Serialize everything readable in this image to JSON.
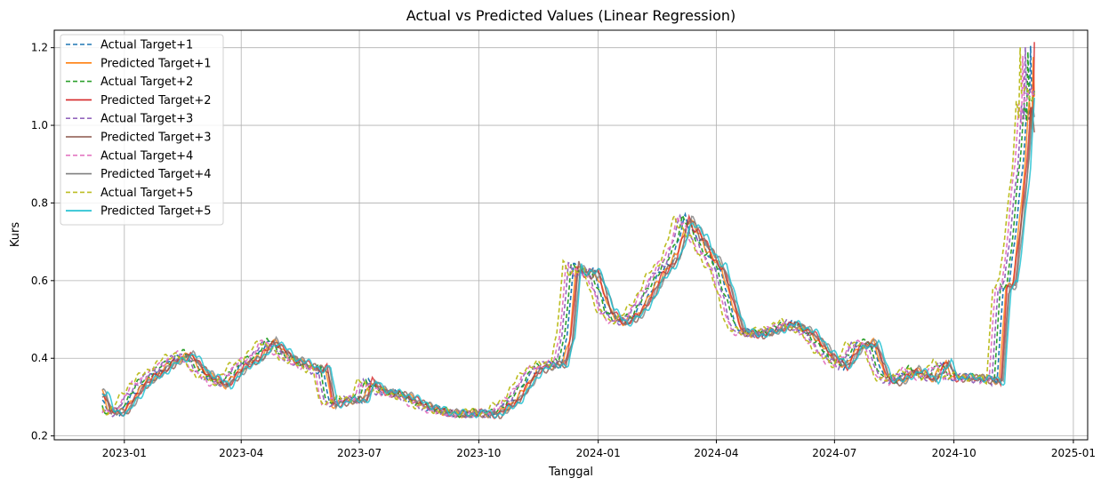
{
  "chart_data": {
    "type": "line",
    "title": "Actual vs Predicted Values (Linear Regression)",
    "xlabel": "Tanggal",
    "ylabel": "Kurs",
    "xlim": [
      "2022-11-08",
      "2025-01-12"
    ],
    "ylim": [
      0.19,
      1.245
    ],
    "grid": true,
    "legend_position": "top-left",
    "x_ticks": [
      "2023-01-01",
      "2023-04-01",
      "2023-07-01",
      "2023-10-01",
      "2024-01-01",
      "2024-04-01",
      "2024-07-01",
      "2024-10-01",
      "2025-01-01"
    ],
    "x_tick_labels": [
      "2023-01",
      "2023-04",
      "2023-07",
      "2023-10",
      "2024-01",
      "2024-04",
      "2024-07",
      "2024-10",
      "2025-01"
    ],
    "y_ticks": [
      0.2,
      0.4,
      0.6,
      0.8,
      1.0,
      1.2
    ],
    "y_tick_labels": [
      "0.2",
      "0.4",
      "0.6",
      "0.8",
      "1.0",
      "1.2"
    ],
    "base_curve": {
      "dates": [
        "2022-12-15",
        "2022-12-20",
        "2022-12-31",
        "2023-01-15",
        "2023-01-31",
        "2023-02-10",
        "2023-02-20",
        "2023-03-05",
        "2023-03-20",
        "2023-04-05",
        "2023-04-15",
        "2023-04-25",
        "2023-05-10",
        "2023-05-31",
        "2023-06-05",
        "2023-06-10",
        "2023-06-20",
        "2023-07-05",
        "2023-07-10",
        "2023-07-20",
        "2023-08-05",
        "2023-08-20",
        "2023-09-05",
        "2023-09-20",
        "2023-10-01",
        "2023-10-15",
        "2023-10-31",
        "2023-11-15",
        "2023-11-30",
        "2023-12-05",
        "2023-12-10",
        "2023-12-15",
        "2023-12-20",
        "2023-12-31",
        "2024-01-10",
        "2024-01-20",
        "2024-01-31",
        "2024-02-10",
        "2024-02-20",
        "2024-03-01",
        "2024-03-10",
        "2024-03-20",
        "2024-03-31",
        "2024-04-05",
        "2024-04-10",
        "2024-04-20",
        "2024-05-05",
        "2024-05-15",
        "2024-05-31",
        "2024-06-15",
        "2024-06-30",
        "2024-07-10",
        "2024-07-20",
        "2024-07-31",
        "2024-08-10",
        "2024-08-20",
        "2024-09-01",
        "2024-09-15",
        "2024-09-25",
        "2024-10-01",
        "2024-10-15",
        "2024-10-31",
        "2024-11-05",
        "2024-11-10",
        "2024-11-15",
        "2024-11-20",
        "2024-11-25",
        "2024-11-28",
        "2024-11-30",
        "2024-12-01",
        "2024-12-02"
      ],
      "values": [
        0.31,
        0.265,
        0.26,
        0.33,
        0.37,
        0.395,
        0.41,
        0.36,
        0.33,
        0.385,
        0.4,
        0.445,
        0.4,
        0.37,
        0.375,
        0.28,
        0.29,
        0.295,
        0.34,
        0.315,
        0.305,
        0.28,
        0.262,
        0.255,
        0.26,
        0.255,
        0.295,
        0.37,
        0.385,
        0.385,
        0.45,
        0.64,
        0.62,
        0.62,
        0.52,
        0.49,
        0.51,
        0.56,
        0.62,
        0.66,
        0.76,
        0.71,
        0.65,
        0.63,
        0.58,
        0.47,
        0.46,
        0.47,
        0.49,
        0.46,
        0.4,
        0.38,
        0.43,
        0.44,
        0.35,
        0.34,
        0.37,
        0.345,
        0.39,
        0.35,
        0.35,
        0.345,
        0.34,
        0.58,
        0.59,
        0.74,
        0.9,
        1.05,
        1.0,
        1.19,
        1.08
      ]
    },
    "series": [
      {
        "name": "Actual Target+1",
        "style": "dashed",
        "color": "#1f77b4",
        "lag_days": -2,
        "offset": 0.0
      },
      {
        "name": "Predicted Target+1",
        "style": "solid",
        "color": "#ff7f0e",
        "lag_days": 0,
        "offset": 0.0
      },
      {
        "name": "Actual Target+2",
        "style": "dashed",
        "color": "#2ca02c",
        "lag_days": -4,
        "offset": 0.003
      },
      {
        "name": "Predicted Target+2",
        "style": "solid",
        "color": "#d62728",
        "lag_days": 1,
        "offset": 0.0
      },
      {
        "name": "Actual Target+3",
        "style": "dashed",
        "color": "#9467bd",
        "lag_days": -6,
        "offset": 0.0
      },
      {
        "name": "Predicted Target+3",
        "style": "solid",
        "color": "#8c564b",
        "lag_days": 2,
        "offset": -0.002
      },
      {
        "name": "Actual Target+4",
        "style": "dashed",
        "color": "#e377c2",
        "lag_days": -8,
        "offset": 0.0
      },
      {
        "name": "Predicted Target+4",
        "style": "solid",
        "color": "#7f7f7f",
        "lag_days": 3,
        "offset": 0.0
      },
      {
        "name": "Actual Target+5",
        "style": "dashed",
        "color": "#bcbd22",
        "lag_days": -10,
        "offset": 0.004
      },
      {
        "name": "Predicted Target+5",
        "style": "solid",
        "color": "#17becf",
        "lag_days": 4,
        "offset": 0.0
      }
    ]
  }
}
